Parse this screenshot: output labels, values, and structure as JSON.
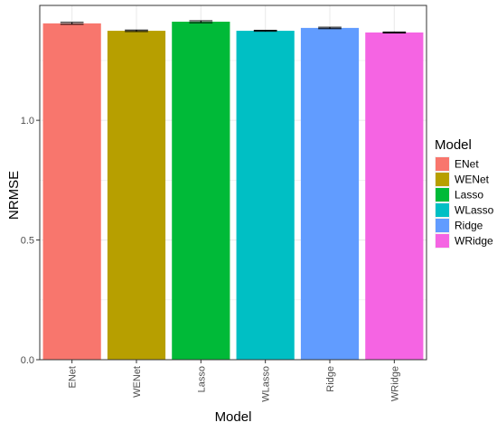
{
  "chart_data": {
    "type": "bar",
    "title": "",
    "xlabel": "Model",
    "ylabel": "NRMSE",
    "categories": [
      "ENet",
      "WENet",
      "Lasso",
      "WLasso",
      "Ridge",
      "WRidge"
    ],
    "values": [
      1.405,
      1.374,
      1.412,
      1.374,
      1.386,
      1.367
    ],
    "error": [
      0.004,
      0.003,
      0.004,
      0.002,
      0.003,
      0.002
    ],
    "colors": [
      "#F8766D",
      "#B79F00",
      "#00BA38",
      "#00BFC4",
      "#619CFF",
      "#F564E3"
    ],
    "ylim": [
      0,
      1.48
    ],
    "yticks": [
      0.0,
      0.5,
      1.0
    ],
    "ytick_labels": [
      "0.0",
      "0.5",
      "1.0"
    ],
    "grid": true,
    "legend": {
      "title": "Model",
      "placement": "right",
      "entries": [
        "ENet",
        "WENet",
        "Lasso",
        "WLasso",
        "Ridge",
        "WRidge"
      ]
    }
  }
}
